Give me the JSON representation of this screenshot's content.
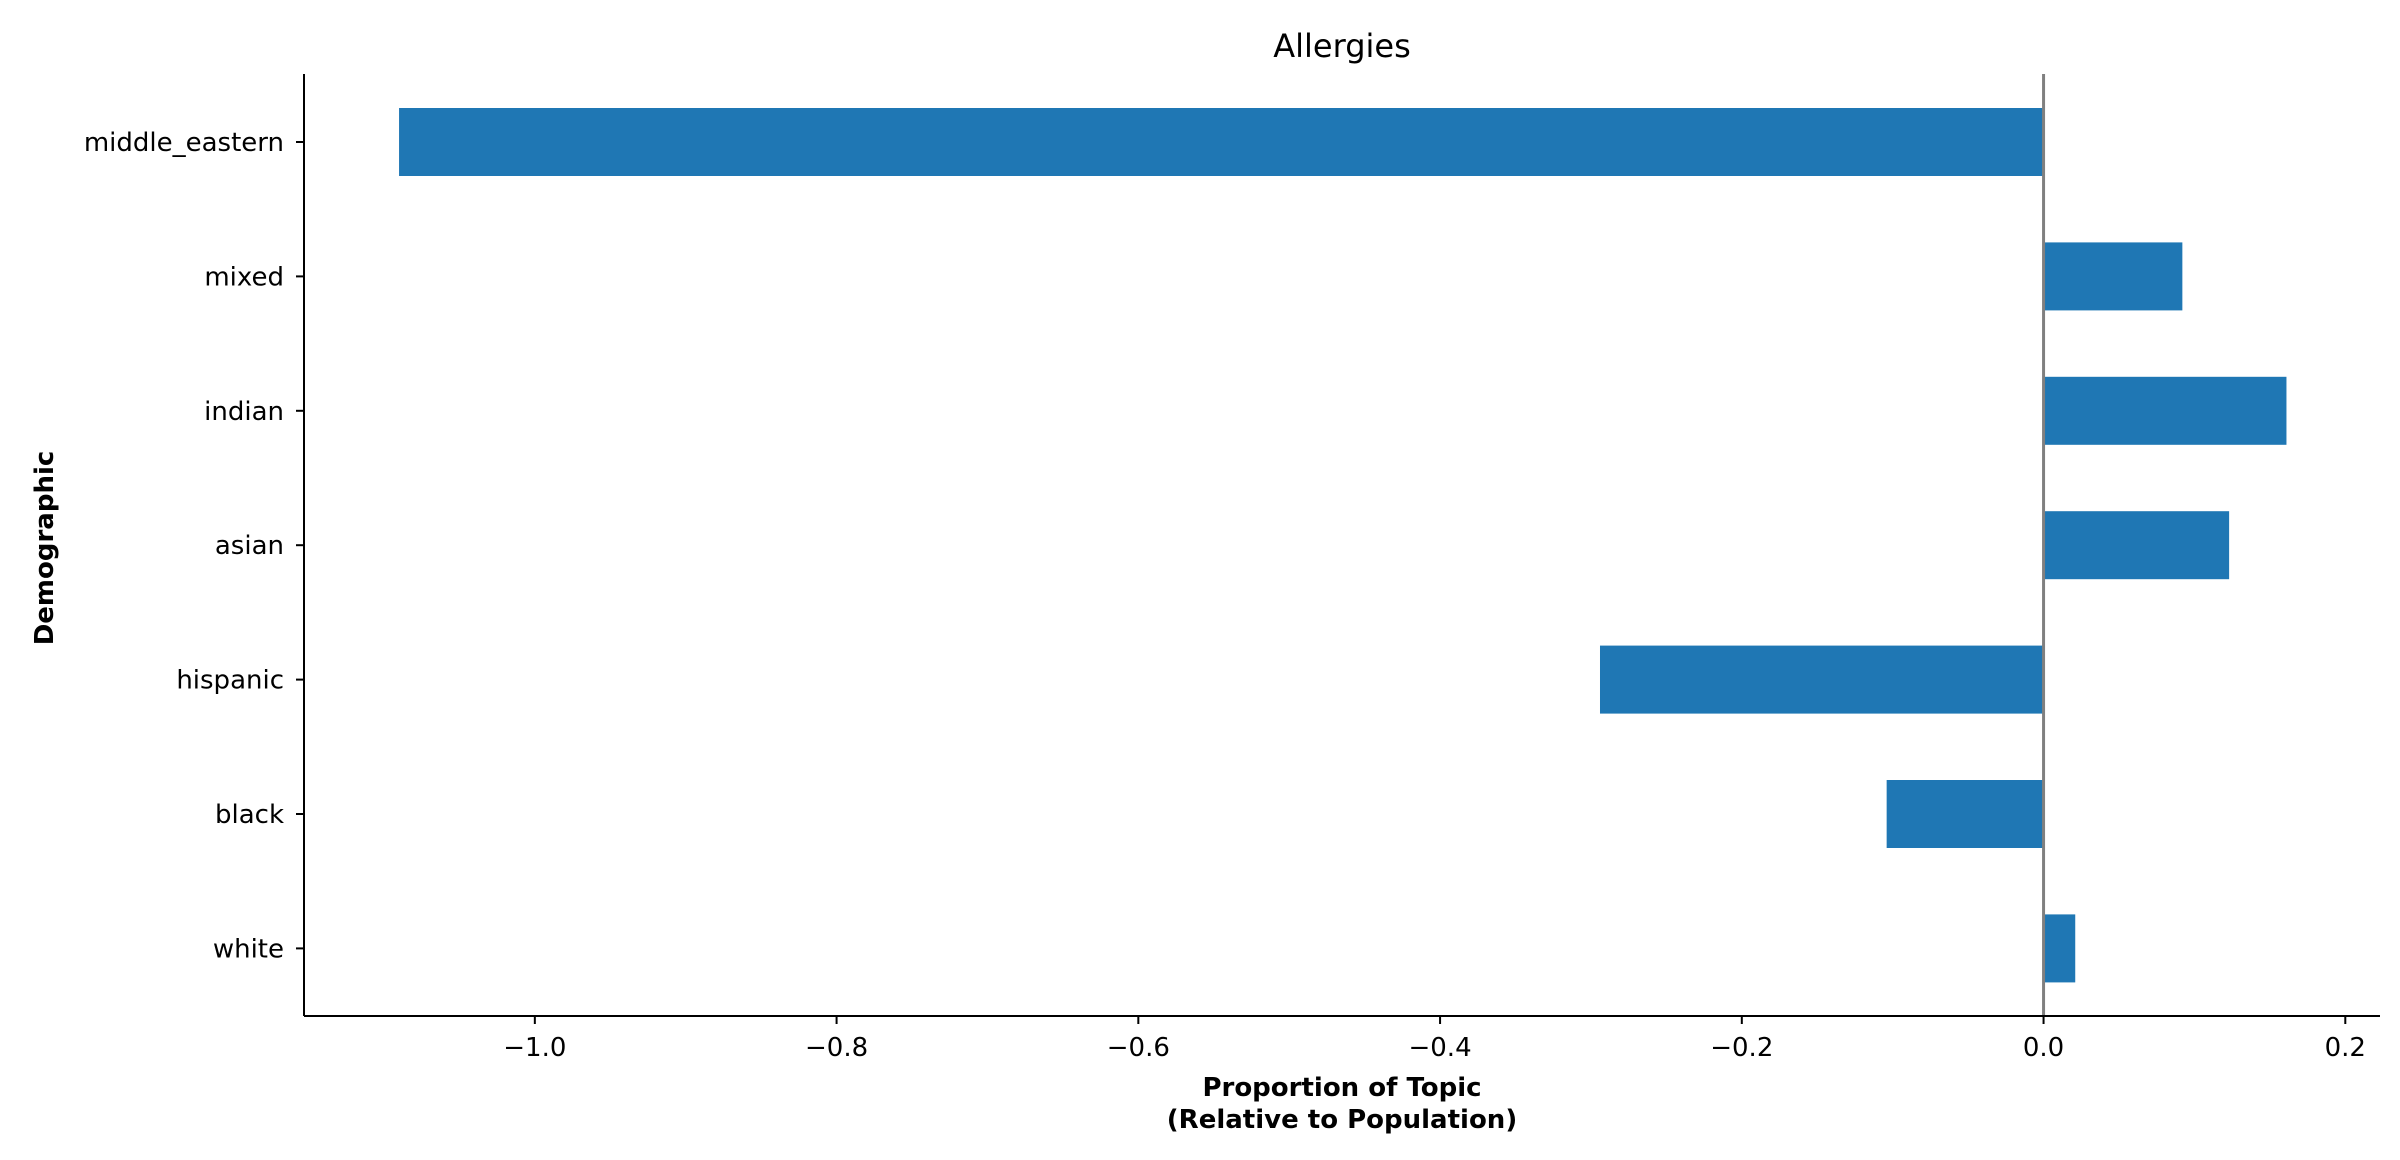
{
  "chart_data": {
    "type": "bar",
    "orientation": "horizontal",
    "title": "Allergies",
    "xlabel_line1": "Proportion of Topic",
    "xlabel_line2": "(Relative to Population)",
    "ylabel": "Demographic",
    "categories": [
      "middle_eastern",
      "mixed",
      "indian",
      "asian",
      "hispanic",
      "black",
      "white"
    ],
    "values": [
      -1.09,
      0.092,
      0.161,
      0.123,
      -0.294,
      -0.104,
      0.021
    ],
    "xlim": [
      -1.153,
      0.223
    ],
    "xticks": [
      -1.0,
      -0.8,
      -0.6,
      -0.4,
      -0.2,
      0.0,
      0.2
    ],
    "xtick_labels": [
      "−1.0",
      "−0.8",
      "−0.6",
      "−0.4",
      "−0.2",
      "0.0",
      "0.2"
    ],
    "zero_line": true,
    "zero_line_color": "#808080",
    "bar_color": "#1f77b4",
    "grid": false,
    "legend": false
  }
}
